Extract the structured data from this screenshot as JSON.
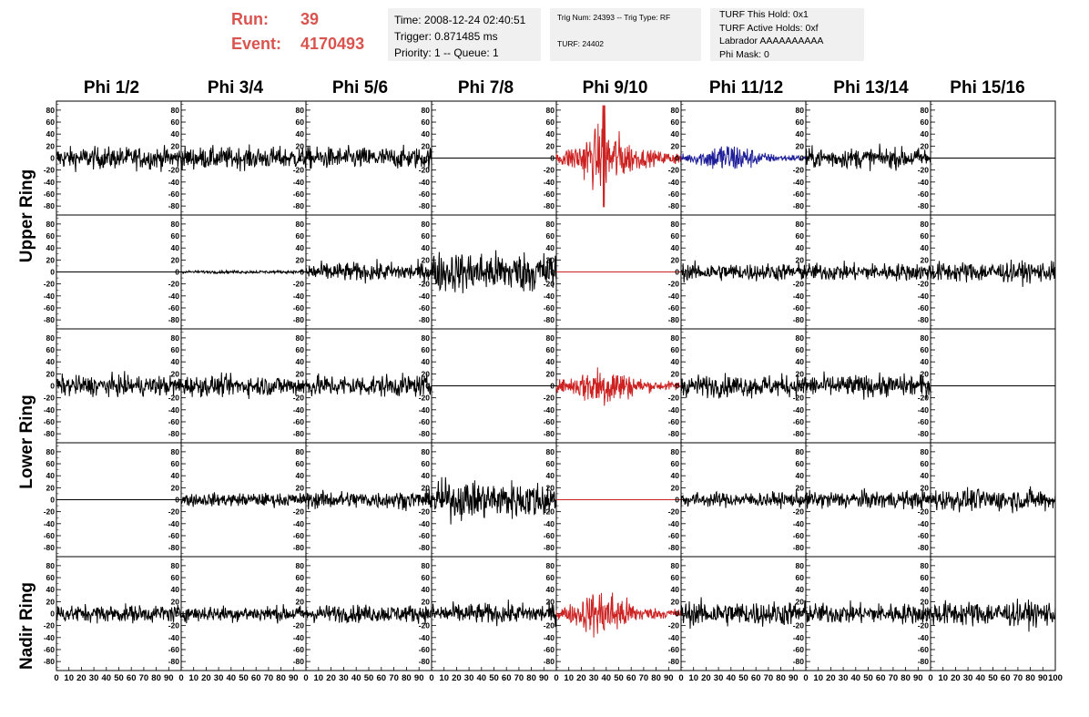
{
  "header": {
    "run_label": "Run:",
    "run_value": "39",
    "event_label": "Event:",
    "event_value": "4170493",
    "time": "Time: 2008-12-24 02:40:51",
    "trigger": "Trigger: 0.871485 ms",
    "priority": "Priority: 1 -- Queue: 1",
    "trig_num": "Trig Num: 24393 -- Trig Type: RF",
    "turf": "TURF: 24402",
    "turf_hold": "TURF This Hold: 0x1",
    "turf_active": "TURF Active Holds: 0xf",
    "labrador": "Labrador AAAAAAAAAA",
    "phi_mask": "Phi Mask: 0"
  },
  "columns": [
    "Phi 1/2",
    "Phi 3/4",
    "Phi 5/6",
    "Phi 7/8",
    "Phi 9/10",
    "Phi 11/12",
    "Phi 13/14",
    "Phi 15/16"
  ],
  "ring_labels": [
    "Upper Ring",
    "Lower Ring",
    "Nadir Ring"
  ],
  "colors": {
    "red": "#cc2222",
    "blue": "#1e1e99",
    "black": "#000000",
    "title_red": "#d9534f"
  },
  "chart_data": {
    "type": "line",
    "rows": 5,
    "cols": 8,
    "ylim": [
      -95,
      95
    ],
    "yticks": [
      -80,
      -60,
      -40,
      -20,
      0,
      20,
      40,
      60,
      80
    ],
    "xlim": [
      0,
      100
    ],
    "xticks": [
      0,
      10,
      20,
      30,
      40,
      50,
      60,
      70,
      80,
      90,
      100
    ],
    "panels": [
      {
        "row": 0,
        "col": 0,
        "color": "black",
        "amp": 15
      },
      {
        "row": 0,
        "col": 1,
        "color": "black",
        "amp": 15
      },
      {
        "row": 0,
        "col": 2,
        "color": "black",
        "amp": 15
      },
      {
        "row": 0,
        "col": 3,
        "color": "black",
        "amp": 0
      },
      {
        "row": 0,
        "col": 4,
        "color": "red",
        "amp": 25,
        "burst": true
      },
      {
        "row": 0,
        "col": 5,
        "color": "blue",
        "amp": 13,
        "burst": true
      },
      {
        "row": 0,
        "col": 6,
        "color": "black",
        "amp": 14
      },
      {
        "row": 0,
        "col": 7,
        "color": "black",
        "amp": 0
      },
      {
        "row": 1,
        "col": 0,
        "color": "black",
        "amp": 0
      },
      {
        "row": 1,
        "col": 1,
        "color": "black",
        "amp": 2
      },
      {
        "row": 1,
        "col": 2,
        "color": "black",
        "amp": 13
      },
      {
        "row": 1,
        "col": 3,
        "color": "black",
        "amp": 28
      },
      {
        "row": 1,
        "col": 4,
        "color": "red",
        "amp": 0
      },
      {
        "row": 1,
        "col": 5,
        "color": "black",
        "amp": 12
      },
      {
        "row": 1,
        "col": 6,
        "color": "black",
        "amp": 12
      },
      {
        "row": 1,
        "col": 7,
        "color": "black",
        "amp": 14
      },
      {
        "row": 2,
        "col": 0,
        "color": "black",
        "amp": 14
      },
      {
        "row": 2,
        "col": 1,
        "color": "black",
        "amp": 14
      },
      {
        "row": 2,
        "col": 2,
        "color": "black",
        "amp": 15
      },
      {
        "row": 2,
        "col": 3,
        "color": "black",
        "amp": 0
      },
      {
        "row": 2,
        "col": 4,
        "color": "red",
        "amp": 18,
        "burst": true
      },
      {
        "row": 2,
        "col": 5,
        "color": "black",
        "amp": 15
      },
      {
        "row": 2,
        "col": 6,
        "color": "black",
        "amp": 15
      },
      {
        "row": 2,
        "col": 7,
        "color": "black",
        "amp": 0
      },
      {
        "row": 3,
        "col": 0,
        "color": "black",
        "amp": 0
      },
      {
        "row": 3,
        "col": 1,
        "color": "black",
        "amp": 9
      },
      {
        "row": 3,
        "col": 2,
        "color": "black",
        "amp": 12
      },
      {
        "row": 3,
        "col": 3,
        "color": "black",
        "amp": 26
      },
      {
        "row": 3,
        "col": 4,
        "color": "red",
        "amp": 0
      },
      {
        "row": 3,
        "col": 5,
        "color": "black",
        "amp": 10
      },
      {
        "row": 3,
        "col": 6,
        "color": "black",
        "amp": 12
      },
      {
        "row": 3,
        "col": 7,
        "color": "black",
        "amp": 15
      },
      {
        "row": 4,
        "col": 0,
        "color": "black",
        "amp": 12
      },
      {
        "row": 4,
        "col": 1,
        "color": "black",
        "amp": 11
      },
      {
        "row": 4,
        "col": 2,
        "color": "black",
        "amp": 12
      },
      {
        "row": 4,
        "col": 3,
        "color": "black",
        "amp": 14
      },
      {
        "row": 4,
        "col": 4,
        "color": "red",
        "amp": 20,
        "burst": true
      },
      {
        "row": 4,
        "col": 5,
        "color": "black",
        "amp": 17
      },
      {
        "row": 4,
        "col": 6,
        "color": "black",
        "amp": 14
      },
      {
        "row": 4,
        "col": 7,
        "color": "black",
        "amp": 17
      }
    ]
  }
}
